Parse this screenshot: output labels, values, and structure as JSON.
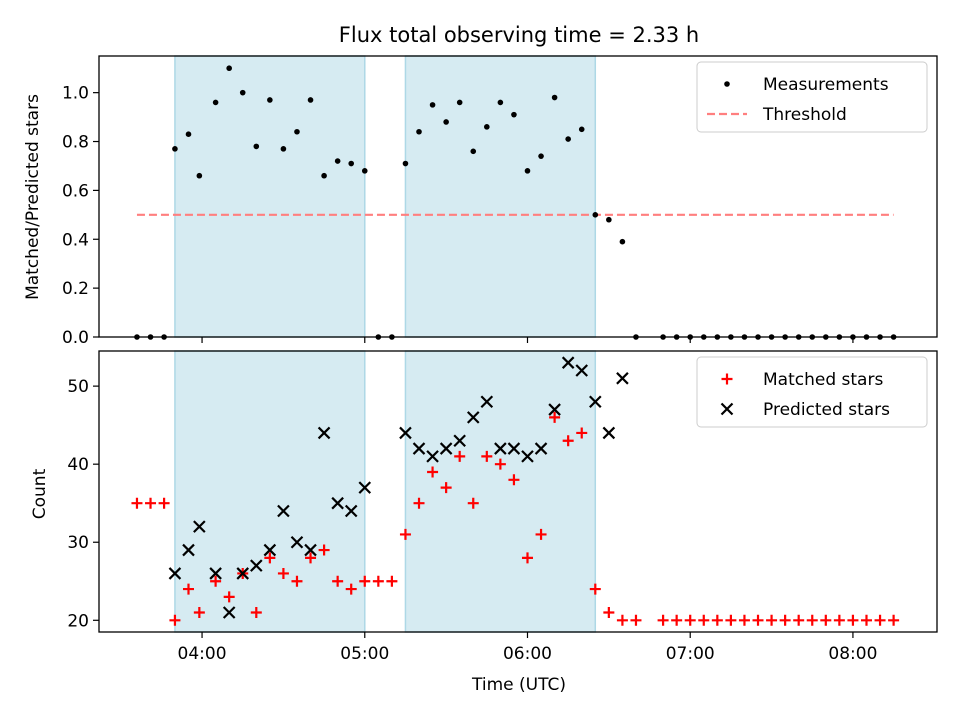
{
  "title": "Flux total observing time = 2.33 h",
  "chart_data": [
    {
      "type": "scatter",
      "ylabel": "Matched/Predicted stars",
      "xlim": [
        "03:22",
        "08:31"
      ],
      "ylim": [
        0,
        1.15
      ],
      "yticks": [
        "0.0",
        "0.2",
        "0.4",
        "0.6",
        "0.8",
        "1.0"
      ],
      "observing_windows": [
        {
          "start": "03:50",
          "end": "05:00"
        },
        {
          "start": "05:15",
          "end": "06:25"
        }
      ],
      "threshold": {
        "value": 0.5,
        "x_start": "03:36",
        "x_end": "08:15",
        "color": "#ff7f7f"
      },
      "legend": {
        "location": "upper right",
        "entries": [
          "Measurements",
          "Threshold"
        ]
      },
      "series": [
        {
          "name": "Measurements",
          "color": "#000000",
          "x": [
            "03:36",
            "03:41",
            "03:46",
            "03:50",
            "03:55",
            "03:59",
            "04:05",
            "04:10",
            "04:15",
            "04:20",
            "04:25",
            "04:30",
            "04:35",
            "04:40",
            "04:45",
            "04:50",
            "04:55",
            "05:00",
            "05:05",
            "05:10",
            "05:15",
            "05:20",
            "05:25",
            "05:30",
            "05:35",
            "05:40",
            "05:45",
            "05:50",
            "05:55",
            "06:00",
            "06:05",
            "06:10",
            "06:15",
            "06:20",
            "06:25",
            "06:30",
            "06:35",
            "06:40",
            "06:50",
            "06:55",
            "07:00",
            "07:05",
            "07:10",
            "07:15",
            "07:20",
            "07:25",
            "07:30",
            "07:35",
            "07:40",
            "07:45",
            "07:50",
            "07:55",
            "08:00",
            "08:05",
            "08:10",
            "08:15"
          ],
          "y": [
            0,
            0,
            0,
            0.77,
            0.83,
            0.66,
            0.96,
            1.1,
            1.0,
            0.78,
            0.97,
            0.77,
            0.84,
            0.97,
            0.66,
            0.72,
            0.71,
            0.68,
            0,
            0,
            0.71,
            0.84,
            0.95,
            0.88,
            0.96,
            0.76,
            0.86,
            0.96,
            0.91,
            0.68,
            0.74,
            0.98,
            0.81,
            0.85,
            0.5,
            0.48,
            0.39,
            0,
            0,
            0,
            0,
            0,
            0,
            0,
            0,
            0,
            0,
            0,
            0,
            0,
            0,
            0,
            0,
            0,
            0,
            0
          ]
        }
      ]
    },
    {
      "type": "scatter",
      "xlabel": "Time (UTC)",
      "ylabel": "Count",
      "xlim": [
        "03:22",
        "08:31"
      ],
      "ylim": [
        18.5,
        54.5
      ],
      "yticks": [
        "20",
        "30",
        "40",
        "50"
      ],
      "xticks": [
        "04:00",
        "05:00",
        "06:00",
        "07:00",
        "08:00"
      ],
      "observing_windows": [
        {
          "start": "03:50",
          "end": "05:00"
        },
        {
          "start": "05:15",
          "end": "06:25"
        }
      ],
      "legend": {
        "location": "upper right",
        "entries": [
          "Matched stars",
          "Predicted stars"
        ]
      },
      "series": [
        {
          "name": "Matched stars",
          "color": "#ff0000",
          "x": [
            "03:36",
            "03:41",
            "03:46",
            "03:50",
            "03:55",
            "03:59",
            "04:05",
            "04:10",
            "04:15",
            "04:20",
            "04:25",
            "04:30",
            "04:35",
            "04:40",
            "04:45",
            "04:50",
            "04:55",
            "05:00",
            "05:05",
            "05:10",
            "05:15",
            "05:20",
            "05:25",
            "05:30",
            "05:35",
            "05:40",
            "05:45",
            "05:50",
            "05:55",
            "06:00",
            "06:05",
            "06:10",
            "06:15",
            "06:20",
            "06:25",
            "06:30",
            "06:35",
            "06:40",
            "06:50",
            "06:55",
            "07:00",
            "07:05",
            "07:10",
            "07:15",
            "07:20",
            "07:25",
            "07:30",
            "07:35",
            "07:40",
            "07:45",
            "07:50",
            "07:55",
            "08:00",
            "08:05",
            "08:10",
            "08:15"
          ],
          "y": [
            35,
            35,
            35,
            20,
            24,
            21,
            25,
            23,
            26,
            21,
            28,
            26,
            25,
            28,
            29,
            25,
            24,
            25,
            25,
            25,
            31,
            35,
            39,
            37,
            41,
            35,
            41,
            40,
            38,
            28,
            31,
            46,
            43,
            44,
            24,
            21,
            20,
            20,
            20,
            20,
            20,
            20,
            20,
            20,
            20,
            20,
            20,
            20,
            20,
            20,
            20,
            20,
            20,
            20,
            20,
            20
          ]
        },
        {
          "name": "Predicted stars",
          "color": "#000000",
          "x": [
            "03:50",
            "03:55",
            "03:59",
            "04:05",
            "04:10",
            "04:15",
            "04:20",
            "04:25",
            "04:30",
            "04:35",
            "04:40",
            "04:45",
            "04:50",
            "04:55",
            "05:00",
            "05:15",
            "05:20",
            "05:25",
            "05:30",
            "05:35",
            "05:40",
            "05:45",
            "05:50",
            "05:55",
            "06:00",
            "06:05",
            "06:10",
            "06:15",
            "06:20",
            "06:25",
            "06:30",
            "06:35"
          ],
          "y": [
            26,
            29,
            32,
            26,
            21,
            26,
            27,
            29,
            34,
            30,
            29,
            44,
            35,
            34,
            37,
            44,
            42,
            41,
            42,
            43,
            46,
            48,
            42,
            42,
            41,
            42,
            47,
            53,
            52,
            48,
            44,
            51
          ]
        }
      ]
    }
  ]
}
